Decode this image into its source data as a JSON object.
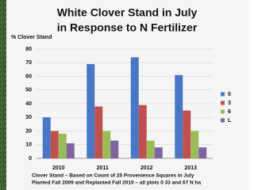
{
  "chart_data": {
    "type": "bar",
    "title": [
      "White Clover Stand in July",
      "in Response to N Fertilizer"
    ],
    "y_label": "% Clover Stand",
    "categories": [
      "2010",
      "2011",
      "2012",
      "2013"
    ],
    "series": [
      {
        "name": "0",
        "color": "#4a76c6",
        "values": [
          30,
          69,
          74,
          61
        ]
      },
      {
        "name": "3",
        "color": "#c0504d",
        "values": [
          20,
          38,
          39,
          35
        ]
      },
      {
        "name": "6",
        "color": "#9bbb59",
        "values": [
          18,
          20,
          13,
          20
        ]
      },
      {
        "name": "L",
        "color": "#8064a2",
        "values": [
          11,
          13,
          8,
          8
        ]
      }
    ],
    "ylim": [
      0,
      80
    ],
    "yticks": [
      0,
      10,
      20,
      30,
      40,
      50,
      60,
      70,
      80
    ],
    "grid": true,
    "legend": "right"
  },
  "footnote": [
    "Clover Stand – Based on Count of 25 Provenience Squares in July",
    "Planted Fall 2009 and Replanted Fall 2010 – all plots 0 33 and 67 N ha"
  ]
}
